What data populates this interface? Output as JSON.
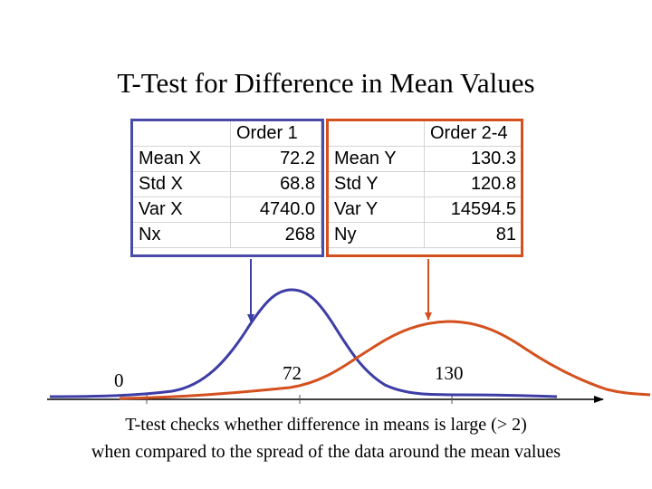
{
  "title": "T-Test for Difference in Mean Values",
  "table_left": {
    "header": "Order 1",
    "rows": [
      {
        "label": "Mean X",
        "value": "72.2"
      },
      {
        "label": "Std X",
        "value": "68.8"
      },
      {
        "label": "Var X",
        "value": "4740.0"
      },
      {
        "label": "Nx",
        "value": "268"
      }
    ]
  },
  "table_right": {
    "header": "Order 2-4",
    "rows": [
      {
        "label": "Mean Y",
        "value": "130.3"
      },
      {
        "label": "Std Y",
        "value": "120.8"
      },
      {
        "label": "Var Y",
        "value": "14594.5"
      },
      {
        "label": "Ny",
        "value": "81"
      }
    ]
  },
  "axis_labels": {
    "zero": "0",
    "mean_x": "72",
    "mean_y": "130"
  },
  "caption": {
    "line1": "T-test checks whether difference in means is large (> 2)",
    "line2": "when compared to the spread of the data around the mean values"
  },
  "colors": {
    "order1": "#3d3da6",
    "order2": "#d4501e",
    "axis": "#000000"
  }
}
